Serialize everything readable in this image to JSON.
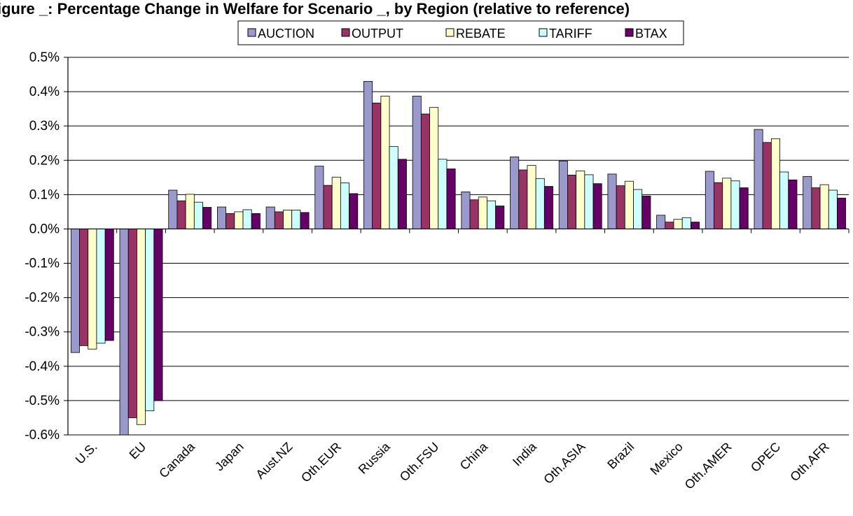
{
  "chart_data": {
    "type": "bar",
    "title": "igure _: Percentage Change in Welfare for Scenario _, by Region (relative to reference)",
    "xlabel": "",
    "ylabel": "",
    "ylim": [
      -0.6,
      0.5
    ],
    "y_tick_step": 0.1,
    "y_tick_format": "percent",
    "grid": true,
    "legend_position": "top",
    "categories": [
      "U.S.",
      "EU",
      "Canada",
      "Japan",
      "Aust.NZ",
      "Oth.EUR",
      "Russia",
      "Oth.FSU",
      "China",
      "India",
      "Oth.ASIA",
      "Brazil",
      "Mexico",
      "Oth.AMER",
      "OPEC",
      "Oth.AFR"
    ],
    "series": [
      {
        "name": "AUCTION",
        "color": "#9999cc",
        "values": [
          -0.36,
          -0.6,
          0.113,
          0.064,
          0.064,
          0.183,
          0.43,
          0.387,
          0.108,
          0.21,
          0.198,
          0.16,
          0.04,
          0.168,
          0.29,
          0.153
        ]
      },
      {
        "name": "OUTPUT",
        "color": "#993366",
        "values": [
          -0.34,
          -0.55,
          0.082,
          0.045,
          0.05,
          0.127,
          0.367,
          0.335,
          0.085,
          0.172,
          0.157,
          0.126,
          0.02,
          0.135,
          0.252,
          0.12
        ]
      },
      {
        "name": "REBATE",
        "color": "#ffffcc",
        "values": [
          -0.35,
          -0.57,
          0.101,
          0.05,
          0.055,
          0.151,
          0.387,
          0.354,
          0.093,
          0.185,
          0.169,
          0.139,
          0.028,
          0.148,
          0.263,
          0.129
        ]
      },
      {
        "name": "TARIFF",
        "color": "#ccffff",
        "values": [
          -0.333,
          -0.53,
          0.078,
          0.056,
          0.055,
          0.134,
          0.24,
          0.203,
          0.082,
          0.147,
          0.158,
          0.115,
          0.033,
          0.14,
          0.166,
          0.113
        ]
      },
      {
        "name": "BTAX",
        "color": "#660066",
        "values": [
          -0.325,
          -0.5,
          0.063,
          0.045,
          0.048,
          0.103,
          0.203,
          0.175,
          0.067,
          0.124,
          0.132,
          0.096,
          0.02,
          0.12,
          0.143,
          0.09
        ]
      }
    ]
  }
}
